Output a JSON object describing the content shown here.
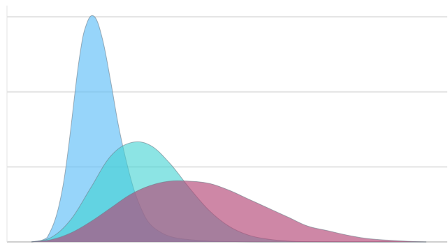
{
  "chart_data": {
    "type": "area",
    "title": "",
    "xlabel": "",
    "ylabel": "",
    "xlim": [
      0,
      10
    ],
    "ylim": [
      0,
      1.05
    ],
    "grid": "horizontal",
    "legend": "none",
    "gridlines_y": [
      0,
      0.3333,
      0.6667,
      1.0
    ],
    "series": [
      {
        "x": [
          0.0,
          0.4,
          0.8,
          1.2,
          1.4,
          1.6,
          1.8,
          2.0,
          2.2,
          2.4,
          2.6,
          2.8,
          3.0,
          3.3,
          3.6,
          4.0,
          4.5,
          5.0,
          6.0,
          8.0,
          10.0
        ],
        "values": [
          0.0,
          0.02,
          0.25,
          0.8,
          0.97,
          1.0,
          0.9,
          0.72,
          0.52,
          0.36,
          0.23,
          0.14,
          0.08,
          0.04,
          0.02,
          0.01,
          0.004,
          0.002,
          0.0,
          0.0,
          0.0
        ],
        "color": "#5fbff8",
        "opacity": 0.65
      },
      {
        "x": [
          0.0,
          0.5,
          1.0,
          1.5,
          2.0,
          2.5,
          3.0,
          3.5,
          4.0,
          4.5,
          5.0,
          5.5,
          6.0,
          6.5,
          7.0,
          8.0,
          9.0,
          10.0
        ],
        "values": [
          0.0,
          0.02,
          0.1,
          0.24,
          0.38,
          0.44,
          0.43,
          0.35,
          0.24,
          0.14,
          0.07,
          0.03,
          0.012,
          0.004,
          0.001,
          0.0,
          0.0,
          0.0
        ],
        "color": "#3fd2d2",
        "opacity": 0.6
      },
      {
        "x": [
          0.0,
          0.5,
          1.0,
          1.5,
          2.0,
          2.5,
          3.0,
          3.5,
          4.0,
          4.5,
          5.0,
          5.5,
          6.0,
          6.5,
          7.0,
          7.5,
          8.0,
          8.5,
          9.0,
          9.5,
          10.0
        ],
        "values": [
          0.0,
          0.01,
          0.04,
          0.09,
          0.15,
          0.21,
          0.25,
          0.27,
          0.27,
          0.26,
          0.23,
          0.19,
          0.15,
          0.11,
          0.07,
          0.05,
          0.03,
          0.015,
          0.008,
          0.003,
          0.0
        ],
        "color": "#b34676",
        "opacity": 0.65
      }
    ]
  }
}
